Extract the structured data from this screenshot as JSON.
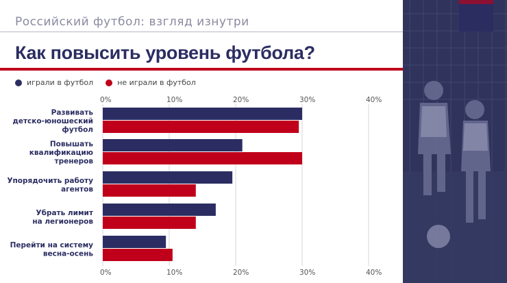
{
  "header": {
    "subtitle": "Российский футбол: взгляд изнутри",
    "title": "Как повысить уровень футбола?"
  },
  "colors": {
    "navy": "#2b2d62",
    "red": "#c0001a",
    "photo_tint": "#2b2d62"
  },
  "chart_data": {
    "type": "bar",
    "orientation": "horizontal",
    "categories": [
      [
        "Развивать",
        "детско-юношеский",
        "футбол"
      ],
      [
        "Повышать",
        "квалификацию",
        "тренеров"
      ],
      [
        "Упорядочить работу",
        "агентов"
      ],
      [
        "Убрать лимит",
        "на легионеров"
      ],
      [
        "Перейти на систему",
        "весна-осень"
      ]
    ],
    "series": [
      {
        "name": "играли в футбол",
        "color": "#2b2d62",
        "values": [
          30,
          21,
          19.5,
          17,
          9.5
        ]
      },
      {
        "name": "не играли в футбол",
        "color": "#c0001a",
        "values": [
          29.5,
          30,
          14,
          14,
          10.5
        ]
      }
    ],
    "xlim": [
      0,
      40
    ],
    "ticks": [
      "0%",
      "10%",
      "20%",
      "30%",
      "40%"
    ],
    "grid": true,
    "legend": "top-left"
  }
}
